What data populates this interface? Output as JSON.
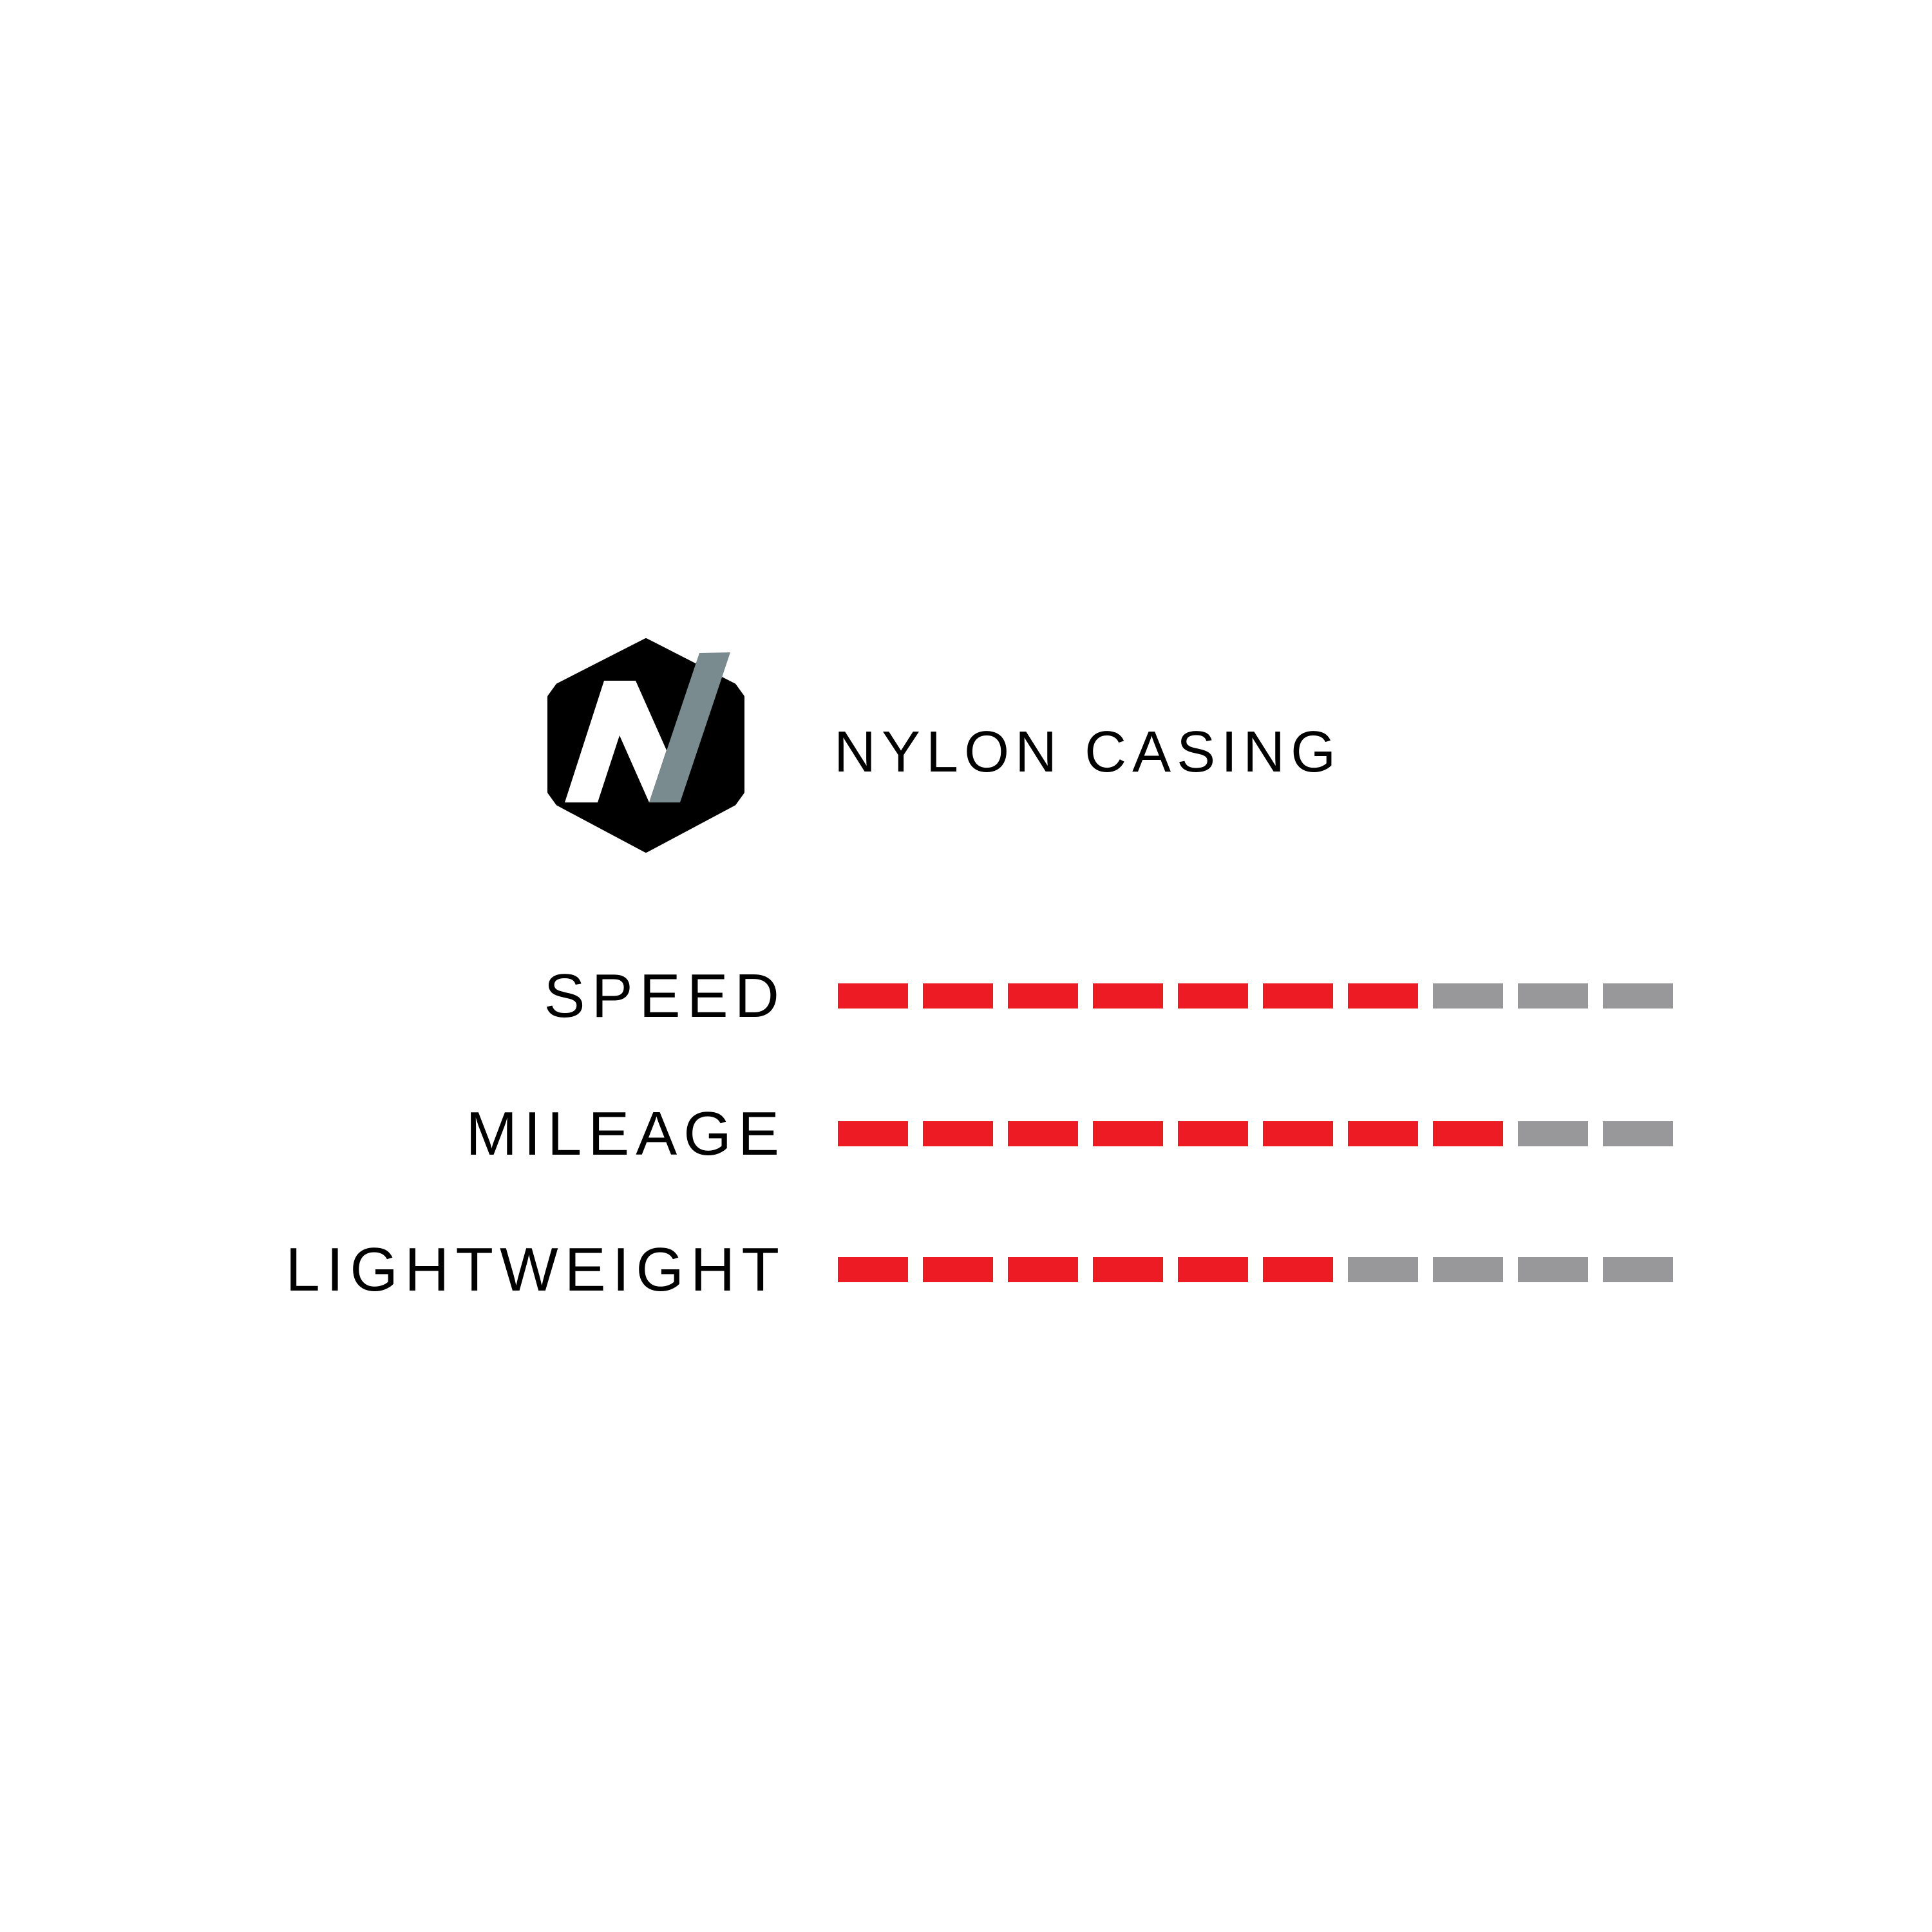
{
  "logo": {
    "text": "N",
    "hex_color": "#000000",
    "slash_color": "#7a8b90"
  },
  "title": "NYLON CASING",
  "colors": {
    "filled": "#ED1C24",
    "empty": "#98979A"
  },
  "scale_max": 10,
  "ratings": [
    {
      "label": "SPEED",
      "value": 7
    },
    {
      "label": "MILEAGE",
      "value": 8
    },
    {
      "label": "LIGHTWEIGHT",
      "value": 6
    }
  ]
}
